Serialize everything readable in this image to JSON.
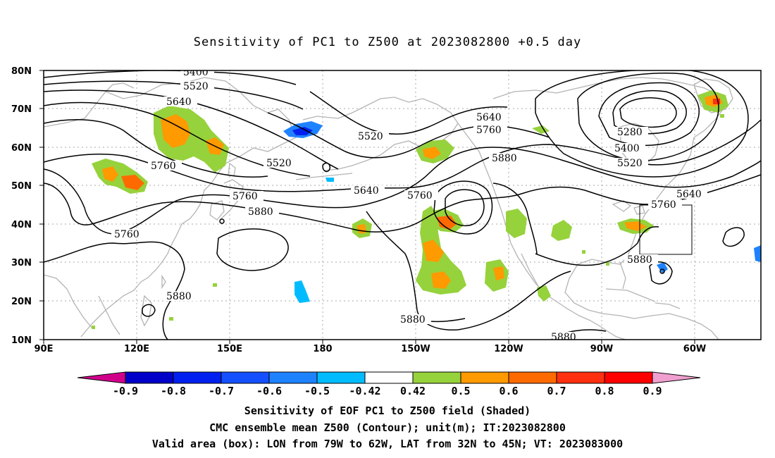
{
  "title": "Sensitivity of PC1 to Z500 at 2023082800 +0.5 day",
  "lat_labels": [
    "80N",
    "70N",
    "60N",
    "50N",
    "40N",
    "30N",
    "20N",
    "10N"
  ],
  "lon_labels": [
    "90E",
    "120E",
    "150E",
    "180",
    "150W",
    "120W",
    "90W",
    "60W"
  ],
  "contour_labels": {
    "c5400_top": "5400",
    "c5520_top": "5520",
    "c5640_top": "5640",
    "c5760_west": "5760",
    "c5760_sw": "5760",
    "c5520_mid": "5520",
    "c5520_mid2": "5520",
    "c5640_mid": "5640",
    "c5760_mid": "5760",
    "c5880_mid": "5880",
    "c5760_pac": "5760",
    "c5640_pac": "5640",
    "c5760_pac2": "5760",
    "c5880_pac": "5880",
    "c5280": "5280",
    "c5400_east": "5400",
    "c5520_east": "5520",
    "c5640_east": "5640",
    "c5760_east": "5760",
    "c5880_east": "5880",
    "c5880_sw": "5880",
    "c5880_s": "5880",
    "c5880_se": "5880"
  },
  "colorbar": {
    "labels": [
      "-0.9",
      "-0.8",
      "-0.7",
      "-0.6",
      "-0.5",
      "-0.42",
      "0.42",
      "0.5",
      "0.6",
      "0.7",
      "0.8",
      "0.9"
    ],
    "colors": [
      "#d1008a",
      "#0000c8",
      "#0020f0",
      "#1450ff",
      "#1e82ff",
      "#00bcff",
      "#ffffff",
      "#96d23c",
      "#ff9a00",
      "#ff6a00",
      "#ff3010",
      "#ff0000",
      "#f09fd0"
    ]
  },
  "footer": {
    "line1": "Sensitivity of EOF PC1 to Z500 field (Shaded)",
    "line2": "CMC ensemble mean Z500 (Contour); unit(m); IT:2023082800",
    "line3": "Valid area (box): LON from 79W to 62W, LAT from 32N to 45N; VT: 2023083000"
  }
}
